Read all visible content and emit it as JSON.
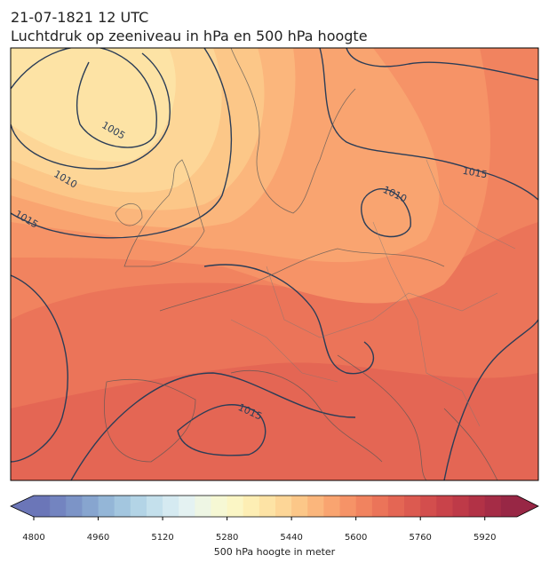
{
  "header": {
    "title": "21-07-1821 12 UTC",
    "subtitle": "Luchtdruk op zeeniveau in hPa en 500 hPa hoogte"
  },
  "isobar_labels": [
    1005,
    1010,
    1015,
    1010,
    1015,
    1015
  ],
  "colorbar": {
    "label": "500 hPa hoogte in meter",
    "range": [
      4800,
      6000
    ],
    "ticks": [
      4800,
      4960,
      5120,
      5280,
      5440,
      5600,
      5760,
      5920
    ],
    "colors": [
      "#6b76b8",
      "#7384c0",
      "#7c94c7",
      "#87a5cf",
      "#94b6d7",
      "#a3c6df",
      "#b3d4e6",
      "#c4e0ec",
      "#d5eaf1",
      "#e4f2f2",
      "#eef6e4",
      "#f6f8d4",
      "#fbf6c5",
      "#fdeeb4",
      "#fde3a5",
      "#fdd697",
      "#fcc788",
      "#fbb67c",
      "#f9a470",
      "#f69367",
      "#f1835f",
      "#eb7459",
      "#e46654",
      "#dc5a50",
      "#d34e4d",
      "#c9434a",
      "#be3a48",
      "#b23246",
      "#a52c46",
      "#982745"
    ]
  }
}
